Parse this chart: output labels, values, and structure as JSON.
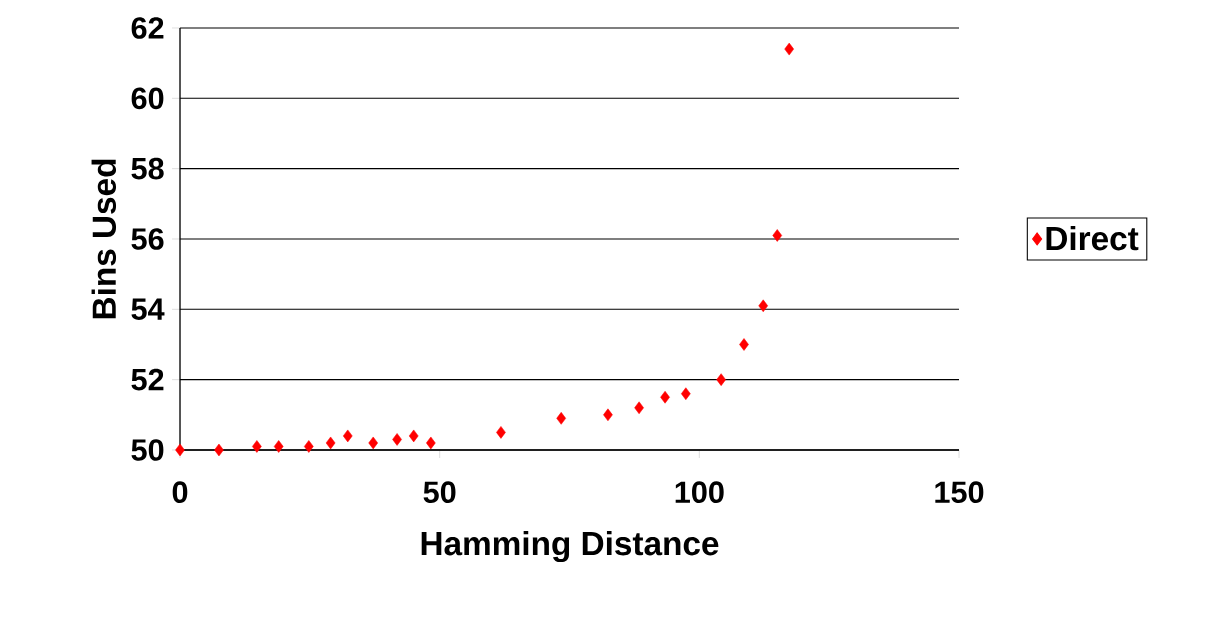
{
  "chart_data": {
    "type": "scatter",
    "xlabel": "Hamming Distance",
    "ylabel": "Bins Used",
    "series": [
      {
        "name": "Direct",
        "color": "#ff0000",
        "x": [
          0,
          7.5,
          14.8,
          19,
          24.8,
          29,
          32.3,
          37.2,
          41.8,
          45,
          48.3,
          61.8,
          73.4,
          82.4,
          88.4,
          93.4,
          97.4,
          104.2,
          108.6,
          112.3,
          115,
          117.3
        ],
        "values": [
          50,
          50,
          50.1,
          50.1,
          50.1,
          50.2,
          50.4,
          50.2,
          50.3,
          50.4,
          50.2,
          50.5,
          50.9,
          51,
          51.2,
          51.5,
          51.6,
          52,
          53,
          54.1,
          56.1,
          61.4
        ]
      }
    ],
    "xlim": [
      0,
      150
    ],
    "xticks": [
      0,
      50,
      100,
      150
    ],
    "ylim": [
      50,
      62
    ],
    "yticks": [
      50,
      52,
      54,
      56,
      58,
      60,
      62
    ],
    "grid": "y",
    "legend": "right",
    "marker": "diamond"
  }
}
